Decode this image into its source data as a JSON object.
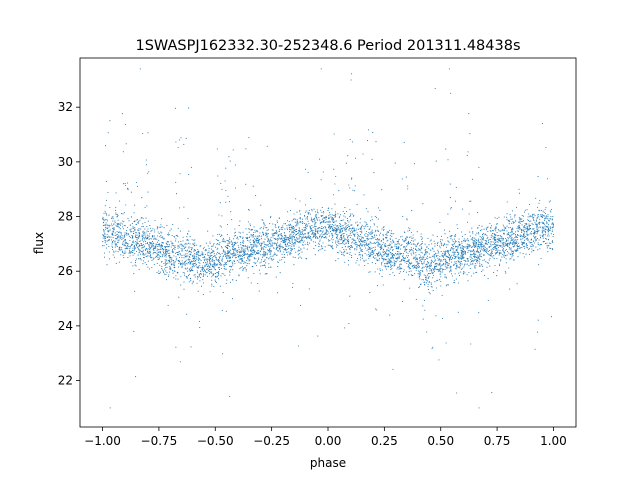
{
  "chart_data": {
    "type": "scatter",
    "title": "1SWASPJ162332.30-252348.6 Period 201311.48438s",
    "xlabel": "phase",
    "ylabel": "flux",
    "xlim": [
      -1.1,
      1.1
    ],
    "ylim": [
      20.3,
      33.8
    ],
    "x_ticks": [
      -1.0,
      -0.75,
      -0.5,
      -0.25,
      0.0,
      0.25,
      0.5,
      0.75,
      1.0
    ],
    "x_tick_labels": [
      "−1.00",
      "−0.75",
      "−0.50",
      "−0.25",
      "0.00",
      "0.25",
      "0.50",
      "0.75",
      "1.00"
    ],
    "y_ticks": [
      22,
      24,
      26,
      28,
      30,
      32
    ],
    "y_tick_labels": [
      "22",
      "24",
      "26",
      "28",
      "30",
      "32"
    ],
    "grid": false,
    "marker_color": "#1f77b4",
    "series": [
      {
        "profile": {
          "phase": [
            -1.0,
            -0.95,
            -0.9,
            -0.85,
            -0.8,
            -0.75,
            -0.7,
            -0.65,
            -0.6,
            -0.55,
            -0.5,
            -0.45,
            -0.4,
            -0.35,
            -0.3,
            -0.25,
            -0.2,
            -0.15,
            -0.1,
            -0.05,
            0.0,
            0.05,
            0.1,
            0.15,
            0.2,
            0.25,
            0.3,
            0.35,
            0.4,
            0.45,
            0.5,
            0.55,
            0.6,
            0.65,
            0.7,
            0.75,
            0.8,
            0.85,
            0.9,
            0.95,
            1.0
          ],
          "median_flux": [
            27.6,
            27.4,
            27.2,
            27.1,
            27.0,
            26.8,
            26.6,
            26.6,
            26.4,
            26.3,
            26.3,
            26.6,
            26.7,
            26.8,
            26.9,
            27.0,
            27.1,
            27.3,
            27.5,
            27.6,
            27.6,
            27.4,
            27.2,
            27.1,
            27.0,
            26.8,
            26.6,
            26.6,
            26.4,
            26.3,
            26.3,
            26.6,
            26.7,
            26.8,
            26.9,
            27.0,
            27.1,
            27.3,
            27.5,
            27.6,
            27.6
          ]
        },
        "flux_range": [
          21.0,
          33.4
        ]
      }
    ]
  }
}
